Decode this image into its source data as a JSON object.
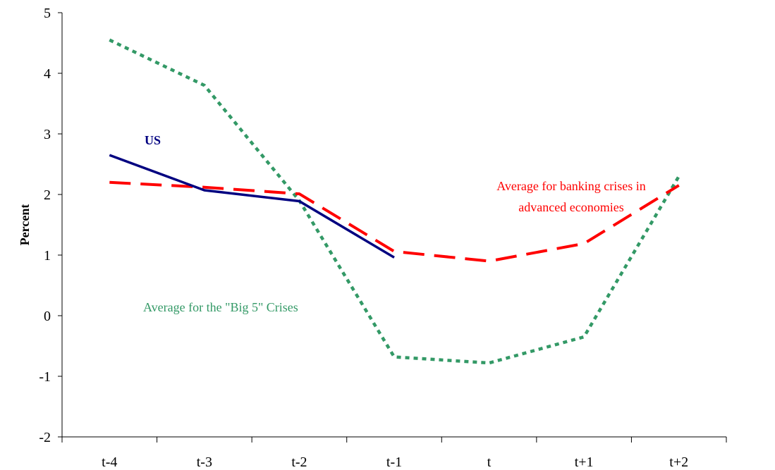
{
  "chart_data": {
    "type": "line",
    "title": "",
    "xlabel": "",
    "ylabel": "Percent",
    "categories": [
      "t-4",
      "t-3",
      "t-2",
      "t-1",
      "t",
      "t+1",
      "t+2"
    ],
    "ylim": [
      -2,
      5
    ],
    "yticks": [
      -2,
      -1,
      0,
      1,
      2,
      3,
      4,
      5
    ],
    "grid": false,
    "series": [
      {
        "name": "US",
        "values": [
          2.65,
          2.07,
          1.89,
          0.96,
          null,
          null,
          null
        ],
        "color": "#000080",
        "style": "solid"
      },
      {
        "name": "Average for banking crises in advanced economies",
        "label_lines": [
          "Average for banking crises in",
          "advanced economies"
        ],
        "values": [
          2.2,
          2.12,
          2.01,
          1.06,
          0.9,
          1.19,
          2.15
        ],
        "color": "#ff0000",
        "style": "dashed"
      },
      {
        "name": "Average for the \"Big 5\" Crises",
        "values": [
          4.55,
          3.8,
          1.9,
          -0.68,
          -0.78,
          -0.35,
          2.3
        ],
        "color": "#339966",
        "style": "dotted"
      }
    ]
  }
}
